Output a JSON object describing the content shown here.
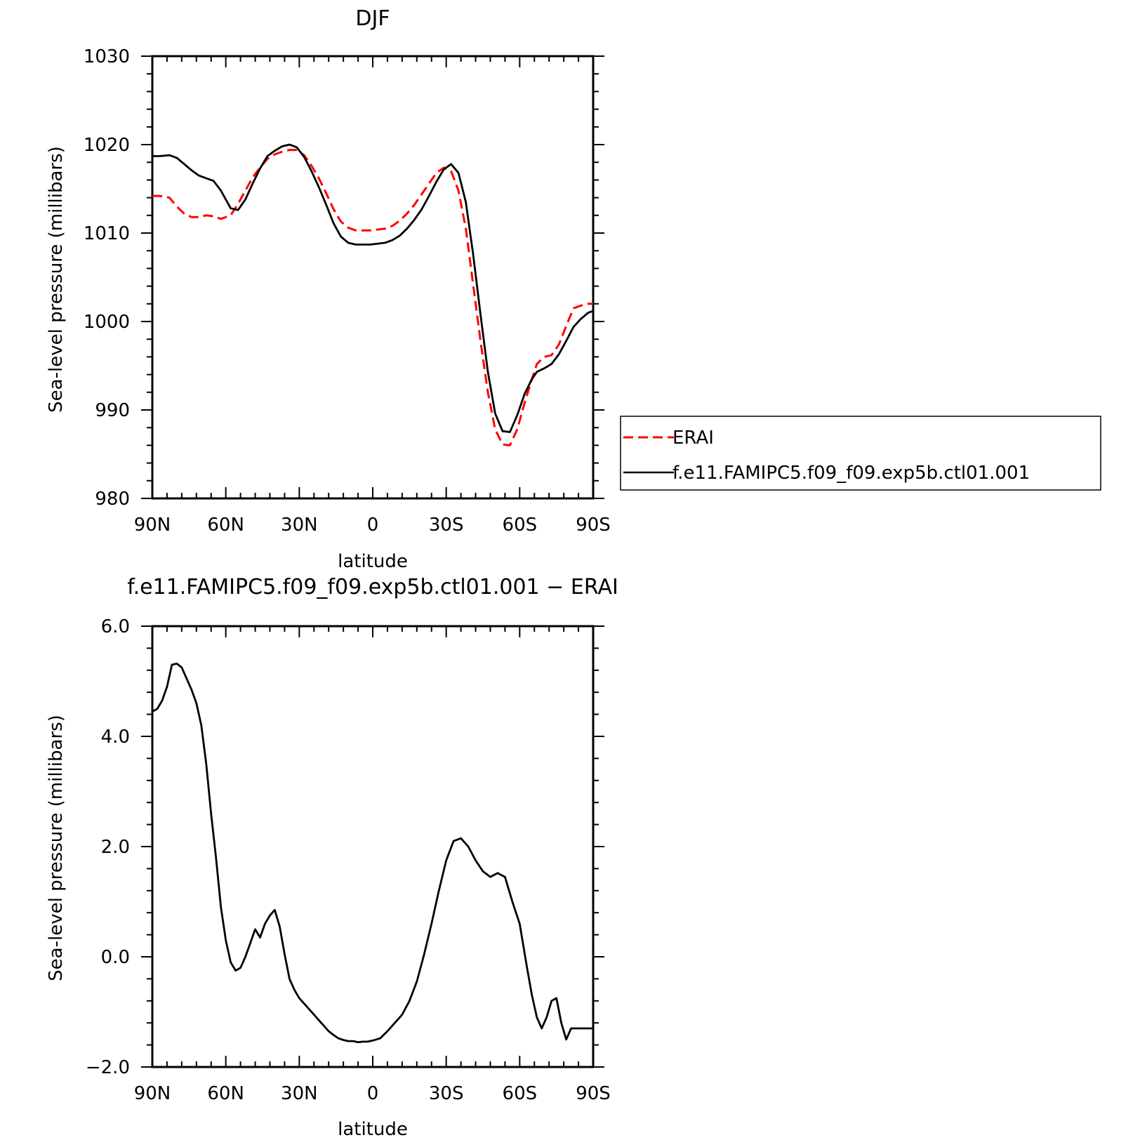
{
  "chart_data": [
    {
      "type": "line",
      "title": "DJF",
      "xlabel": "latitude",
      "ylabel": "Sea-level pressure (millibars)",
      "xlim": [
        90,
        -90
      ],
      "ylim": [
        980,
        1030
      ],
      "x_ticks": [
        90,
        60,
        30,
        0,
        -30,
        -60,
        -90
      ],
      "x_tick_labels": [
        "90N",
        "60N",
        "30N",
        "0",
        "30S",
        "60S",
        "90S"
      ],
      "y_ticks": [
        980,
        990,
        1000,
        1010,
        1020,
        1030
      ],
      "y_tick_labels": [
        "980",
        "990",
        "1000",
        "1010",
        "1020",
        "1030"
      ],
      "legend": "right",
      "series": [
        {
          "name": "ERAI",
          "color": "#ff0000",
          "dash": "dashed",
          "x": [
            90,
            87,
            83,
            80,
            77,
            74,
            71,
            68,
            65,
            62,
            58,
            55,
            52,
            49,
            46,
            43,
            40,
            37,
            34,
            31,
            28,
            25,
            22,
            19,
            16,
            13,
            10,
            7,
            4,
            1,
            -2,
            -5,
            -8,
            -11,
            -14,
            -17,
            -20,
            -23,
            -26,
            -29,
            -32,
            -35,
            -38,
            -41,
            -44,
            -47,
            -50,
            -53,
            -56,
            -59,
            -62,
            -65,
            -67,
            -70,
            -73,
            -76,
            -79,
            -82,
            -85,
            -88,
            -90
          ],
          "values": [
            1014.2,
            1014.2,
            1014.0,
            1013.0,
            1012.2,
            1011.8,
            1011.8,
            1012.0,
            1011.9,
            1011.6,
            1012.0,
            1013.3,
            1014.8,
            1016.3,
            1017.4,
            1018.4,
            1018.9,
            1019.2,
            1019.4,
            1019.4,
            1018.8,
            1017.6,
            1016.2,
            1014.5,
            1012.7,
            1011.3,
            1010.6,
            1010.3,
            1010.3,
            1010.3,
            1010.4,
            1010.5,
            1010.8,
            1011.4,
            1012.2,
            1013.2,
            1014.4,
            1015.6,
            1016.8,
            1017.4,
            1017.0,
            1014.8,
            1010.5,
            1004.2,
            997.8,
            992.0,
            987.8,
            986.1,
            986.0,
            987.8,
            990.8,
            993.5,
            995.2,
            996.0,
            996.2,
            997.4,
            999.5,
            1001.5,
            1001.8,
            1002.0,
            1002.0
          ]
        },
        {
          "name": "f.e11.FAMIPC5.f09_f09.exp5b.ctl01.001",
          "color": "#000000",
          "dash": "solid",
          "x": [
            90,
            87,
            83,
            80,
            77,
            74,
            71,
            68,
            65,
            62,
            58,
            55,
            52,
            49,
            46,
            43,
            40,
            37,
            34,
            31,
            28,
            25,
            22,
            19,
            16,
            13,
            10,
            7,
            4,
            1,
            -2,
            -5,
            -8,
            -11,
            -14,
            -17,
            -20,
            -23,
            -26,
            -29,
            -32,
            -35,
            -38,
            -41,
            -44,
            -47,
            -50,
            -53,
            -56,
            -59,
            -62,
            -65,
            -67,
            -70,
            -73,
            -76,
            -79,
            -82,
            -85,
            -88,
            -90
          ],
          "values": [
            1018.7,
            1018.7,
            1018.8,
            1018.5,
            1017.8,
            1017.1,
            1016.5,
            1016.2,
            1015.9,
            1014.8,
            1012.8,
            1012.6,
            1013.8,
            1015.6,
            1017.3,
            1018.7,
            1019.3,
            1019.8,
            1020.0,
            1019.7,
            1018.6,
            1017.0,
            1015.2,
            1013.2,
            1011.1,
            1009.6,
            1008.9,
            1008.7,
            1008.7,
            1008.7,
            1008.8,
            1008.9,
            1009.2,
            1009.7,
            1010.5,
            1011.5,
            1012.7,
            1014.2,
            1015.8,
            1017.2,
            1017.8,
            1016.8,
            1013.5,
            1007.6,
            1000.8,
            994.3,
            989.6,
            987.6,
            987.5,
            989.4,
            991.8,
            993.5,
            994.3,
            994.7,
            995.2,
            996.3,
            997.8,
            999.4,
            1000.3,
            1001.0,
            1001.2
          ]
        }
      ]
    },
    {
      "type": "line",
      "title": "f.e11.FAMIPC5.f09_f09.exp5b.ctl01.001  −  ERAI",
      "xlabel": "latitude",
      "ylabel": "Sea-level pressure (millibars)",
      "xlim": [
        90,
        -90
      ],
      "ylim": [
        -2.0,
        6.0
      ],
      "x_ticks": [
        90,
        60,
        30,
        0,
        -30,
        -60,
        -90
      ],
      "x_tick_labels": [
        "90N",
        "60N",
        "30N",
        "0",
        "30S",
        "60S",
        "90S"
      ],
      "y_ticks": [
        -2.0,
        0.0,
        2.0,
        4.0,
        6.0
      ],
      "y_tick_labels": [
        "−2.0",
        "0.0",
        "2.0",
        "4.0",
        "6.0"
      ],
      "series": [
        {
          "color": "#000000",
          "dash": "solid",
          "x": [
            90,
            88,
            86,
            84,
            82,
            80,
            78,
            76,
            74,
            72,
            70,
            68,
            66,
            64,
            62,
            60,
            58,
            56,
            54,
            52,
            50,
            48,
            46,
            44,
            42,
            40,
            38,
            36,
            34,
            32,
            30,
            28,
            26,
            24,
            22,
            20,
            18,
            16,
            14,
            12,
            10,
            8,
            6,
            4,
            2,
            0,
            -3,
            -6,
            -9,
            -12,
            -15,
            -18,
            -21,
            -24,
            -27,
            -30,
            -33,
            -36,
            -39,
            -42,
            -45,
            -48,
            -51,
            -54,
            -57,
            -60,
            -63,
            -65,
            -67,
            -69,
            -71,
            -73,
            -75,
            -77,
            -79,
            -81,
            -83,
            -85,
            -87,
            -88,
            -90
          ],
          "values": [
            4.45,
            4.5,
            4.65,
            4.9,
            5.3,
            5.32,
            5.25,
            5.05,
            4.85,
            4.6,
            4.2,
            3.5,
            2.6,
            1.8,
            0.9,
            0.3,
            -0.1,
            -0.25,
            -0.2,
            0.0,
            0.25,
            0.5,
            0.35,
            0.6,
            0.75,
            0.85,
            0.55,
            0.05,
            -0.4,
            -0.6,
            -0.75,
            -0.85,
            -0.95,
            -1.05,
            -1.15,
            -1.25,
            -1.35,
            -1.42,
            -1.48,
            -1.51,
            -1.53,
            -1.53,
            -1.55,
            -1.54,
            -1.54,
            -1.52,
            -1.48,
            -1.35,
            -1.2,
            -1.05,
            -0.8,
            -0.45,
            0.05,
            0.6,
            1.2,
            1.75,
            2.1,
            2.15,
            2.0,
            1.75,
            1.55,
            1.45,
            1.52,
            1.45,
            1.0,
            0.6,
            -0.2,
            -0.7,
            -1.1,
            -1.3,
            -1.1,
            -0.8,
            -0.75,
            -1.2,
            -1.5,
            -1.3,
            -1.3,
            -1.3,
            -1.3,
            -1.3,
            -1.3
          ]
        }
      ]
    }
  ]
}
